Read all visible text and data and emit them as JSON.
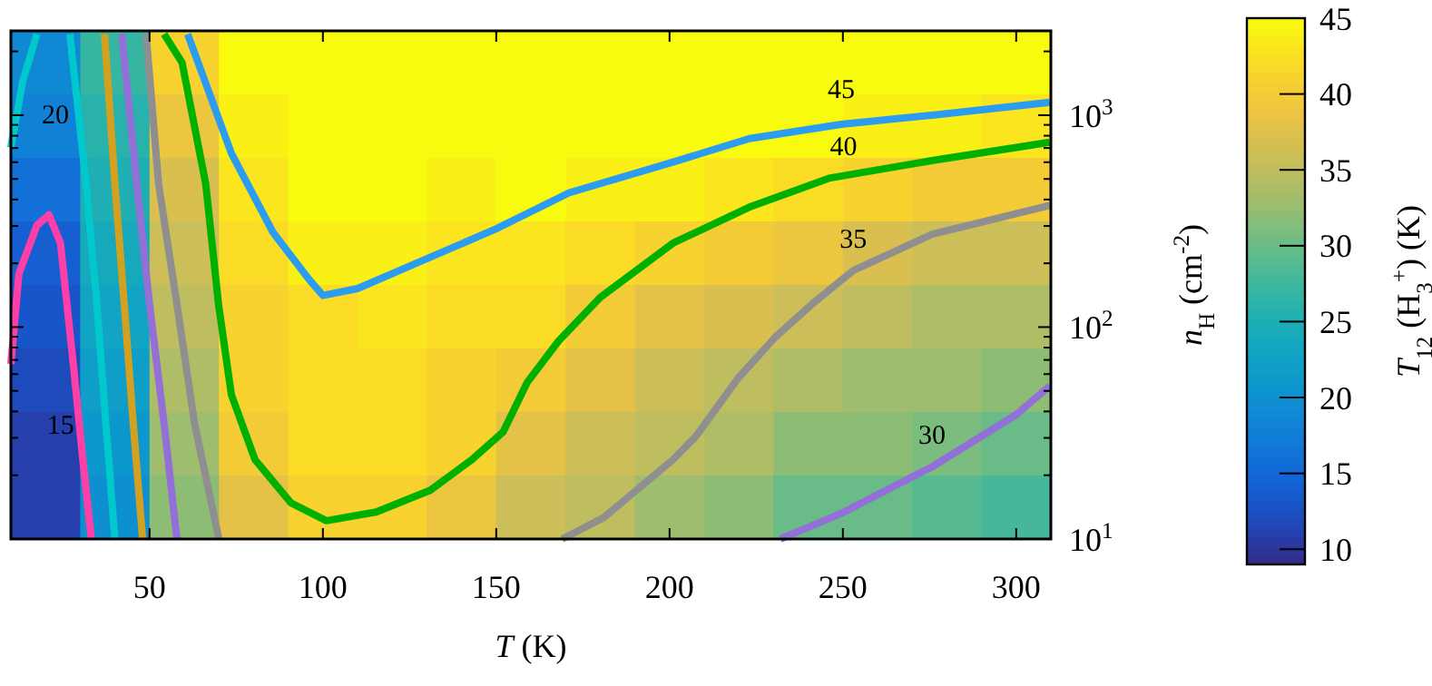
{
  "chart_data": {
    "type": "heatmap",
    "xlabel": "T (K)",
    "ylabel": "n$_{H}$ (cm$^{-2}$)",
    "clabel": "T$_{12}$ (H$_{3}$$^{+}$) (K)",
    "xlim": [
      10,
      310
    ],
    "xticks": [
      50,
      100,
      150,
      200,
      250,
      300
    ],
    "ylim": [
      10,
      2500
    ],
    "log": "y",
    "yticks": [
      {
        "value": 10,
        "label": "10$^{1}$"
      },
      {
        "value": 20,
        "label": null
      },
      {
        "value": 30,
        "label": null
      },
      {
        "value": 40,
        "label": null
      },
      {
        "value": 50,
        "label": null
      },
      {
        "value": 60,
        "label": null
      },
      {
        "value": 70,
        "label": null
      },
      {
        "value": 80,
        "label": null
      },
      {
        "value": 90,
        "label": null
      },
      {
        "value": 100,
        "label": "10$^{2}$"
      },
      {
        "value": 200,
        "label": null
      },
      {
        "value": 300,
        "label": null
      },
      {
        "value": 400,
        "label": null
      },
      {
        "value": 500,
        "label": null
      },
      {
        "value": 600,
        "label": null
      },
      {
        "value": 700,
        "label": null
      },
      {
        "value": 800,
        "label": null
      },
      {
        "value": 900,
        "label": null
      },
      {
        "value": 1000,
        "label": "10$^{3}$"
      },
      {
        "value": 2000,
        "label": null
      }
    ],
    "clim": [
      9,
      45
    ],
    "cticks": [
      10,
      15,
      20,
      25,
      30,
      35,
      40,
      45
    ],
    "cells": [
      [
        19,
        27,
        41,
        45,
        45,
        45,
        45,
        45,
        45,
        45,
        45,
        45,
        45,
        45,
        45
      ],
      [
        18,
        26,
        39,
        44,
        45,
        45,
        45,
        45,
        45,
        45,
        45,
        45,
        44,
        44,
        43
      ],
      [
        16,
        25,
        37,
        43,
        45,
        45,
        44,
        45,
        44,
        44,
        43,
        42,
        41,
        40,
        40
      ],
      [
        14,
        24,
        36,
        42,
        44,
        44,
        43,
        43,
        42,
        41,
        40,
        39,
        37,
        36,
        36
      ],
      [
        13,
        23,
        35,
        41,
        42,
        43,
        42,
        42,
        40,
        38,
        37,
        36,
        35,
        34,
        34
      ],
      [
        12,
        22,
        34,
        41,
        42,
        42,
        41,
        40,
        38,
        36,
        35,
        34,
        33,
        33,
        32
      ],
      [
        11,
        21,
        33,
        40,
        42,
        42,
        41,
        38,
        36,
        35,
        34,
        32,
        32,
        31,
        30
      ],
      [
        11,
        20,
        32,
        38,
        41,
        41,
        39,
        36,
        35,
        33,
        32,
        30,
        30,
        29,
        28
      ]
    ],
    "series": [
      {
        "type": "line",
        "color": "#2b9cf0",
        "x": [
          61,
          73.6,
          85.6,
          96,
          100,
          110,
          150,
          171,
          201,
          223,
          249.5,
          275.7,
          309.7
        ],
        "values": [
          2415,
          661,
          280,
          168,
          141,
          152,
          291,
          430,
          601,
          775,
          906,
          1000,
          1150
        ]
      },
      {
        "type": "line",
        "color": "#00b000",
        "x": [
          54.2,
          59.4,
          66.2,
          69.9,
          73.6,
          80.4,
          90.8,
          101,
          115.4,
          131,
          143,
          152,
          159,
          168,
          180,
          201,
          223,
          246,
          276,
          309.7
        ],
        "values": [
          2415,
          1767,
          475,
          128,
          48,
          23.7,
          14.8,
          12.2,
          13.4,
          17,
          23.7,
          32,
          55,
          86,
          138,
          249,
          368,
          504,
          612,
          745
        ]
      },
      {
        "type": "line",
        "color": "#8f8f8f",
        "x": [
          169,
          181,
          201,
          207.6,
          220,
          230.6,
          241,
          253,
          275.7,
          309.7
        ],
        "values": [
          10,
          12.6,
          23.7,
          30.5,
          58,
          90,
          128,
          185,
          274,
          375
        ]
      },
      {
        "type": "line",
        "color": "#9370d8",
        "x": [
          232,
          249.5,
          275.7,
          300,
          309.7
        ],
        "values": [
          10,
          13.2,
          21.9,
          38.6,
          52.8
        ]
      },
      {
        "type": "line",
        "color": "#8f8f8f",
        "x": [
          49,
          52.6,
          57.9,
          63,
          70
        ],
        "values": [
          2415,
          475,
          128,
          35,
          10
        ]
      },
      {
        "type": "line",
        "color": "#9370d8",
        "x": [
          42,
          46.3,
          50,
          54.2,
          57.9
        ],
        "values": [
          2415,
          475,
          128,
          35,
          10
        ]
      },
      {
        "type": "line",
        "color": "#d4a020",
        "x": [
          37,
          40,
          42.7,
          45.3,
          48
        ],
        "values": [
          2415,
          475,
          128,
          35,
          10
        ]
      },
      {
        "type": "line",
        "color": "#00c8cc",
        "x": [
          10,
          13.4,
          17.5,
          null,
          27,
          31.7,
          34.8,
          37.4,
          40
        ],
        "values": [
          703,
          1445,
          2415,
          null,
          2415,
          475,
          128,
          35,
          10
        ]
      },
      {
        "type": "line",
        "color": "#ff3fa8",
        "x": [
          10,
          12.3,
          17.5,
          21,
          24.3,
          28,
          30.6,
          33.2
        ],
        "values": [
          67,
          178,
          302,
          339,
          249,
          67,
          25,
          10
        ]
      }
    ],
    "annotations": [
      {
        "text": "45",
        "x": 249.5,
        "y": 906
      },
      {
        "text": "40",
        "x": 246,
        "y": 504
      },
      {
        "text": "35",
        "x": 253,
        "y": 185
      },
      {
        "text": "30",
        "x": 275.7,
        "y": 21.9
      },
      {
        "text": "20",
        "x": 13.4,
        "y": 1445
      },
      {
        "text": "15",
        "x": 30.6,
        "y": 25
      }
    ]
  }
}
